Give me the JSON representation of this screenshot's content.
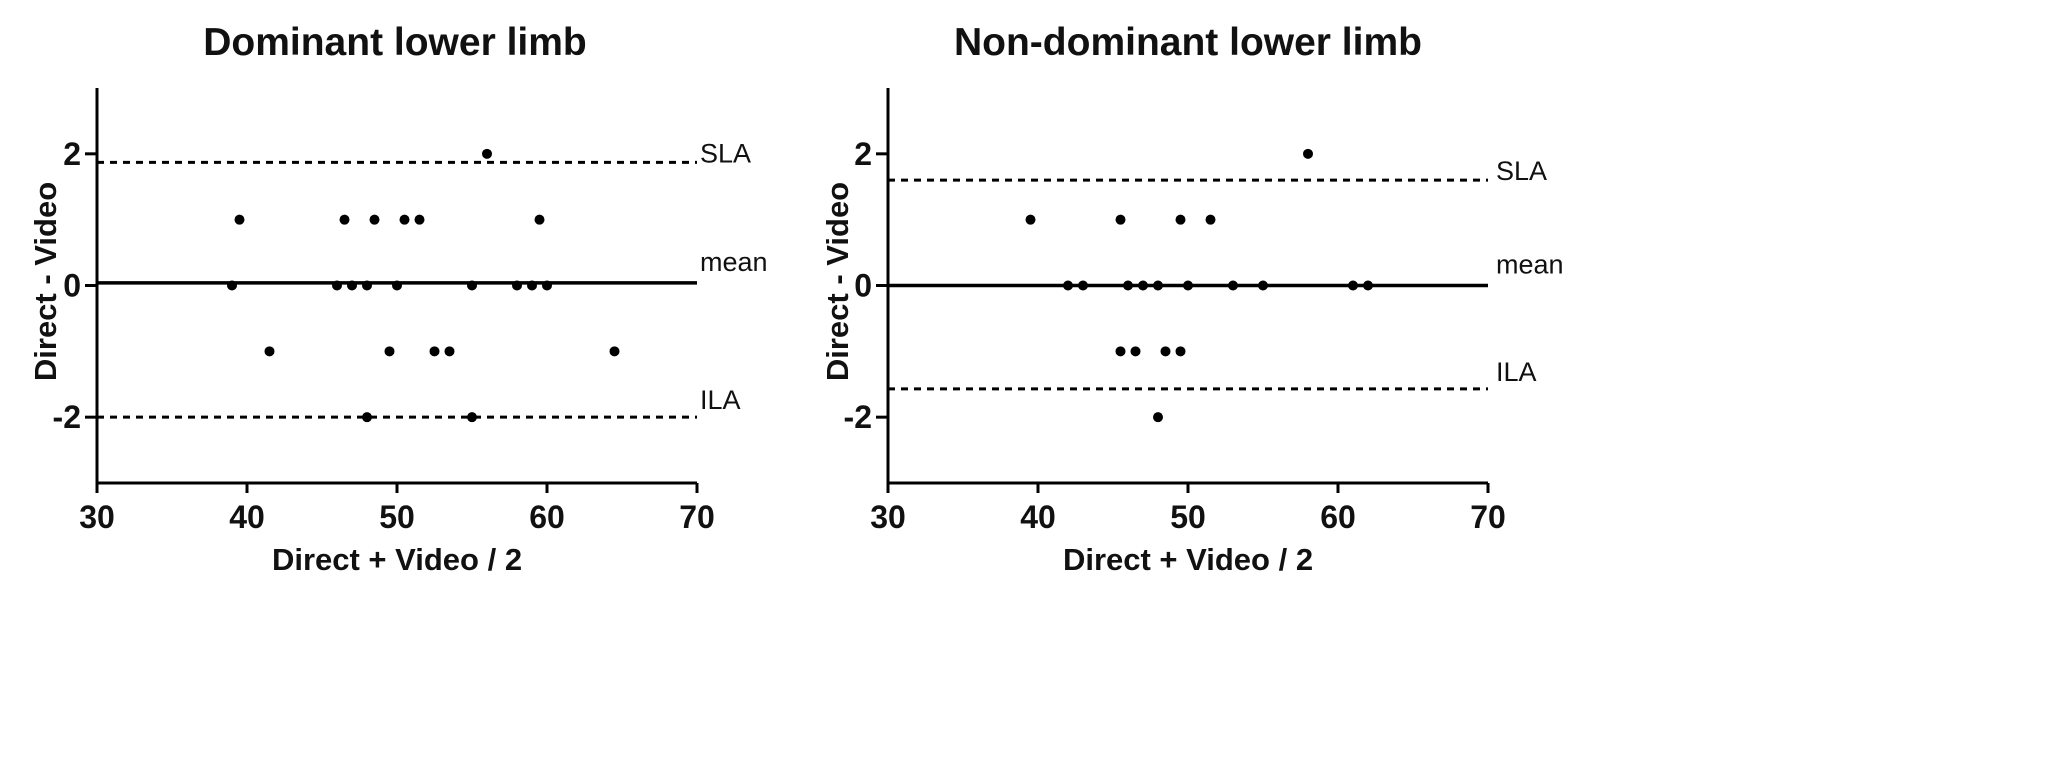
{
  "chart_data": [
    {
      "type": "scatter",
      "title": "Dominant lower limb",
      "xlabel": "Direct + Video / 2",
      "ylabel": "Direct - Video",
      "xlim": [
        30,
        70
      ],
      "ylim": [
        -3,
        3
      ],
      "x_ticks": [
        "30",
        "40",
        "50",
        "60",
        "70"
      ],
      "y_ticks": [
        "2",
        "0",
        "-2"
      ],
      "grid": false,
      "reference_lines": [
        {
          "label": "SLA",
          "y": 1.87,
          "style": "dashed"
        },
        {
          "label": "mean",
          "y": 0.04,
          "style": "solid"
        },
        {
          "label": "ILA",
          "y": -2.0,
          "style": "dashed"
        }
      ],
      "points": [
        {
          "x": 39.5,
          "y": 1
        },
        {
          "x": 46.5,
          "y": 1
        },
        {
          "x": 48.5,
          "y": 1
        },
        {
          "x": 50.5,
          "y": 1
        },
        {
          "x": 51.5,
          "y": 1
        },
        {
          "x": 59.5,
          "y": 1
        },
        {
          "x": 56,
          "y": 2
        },
        {
          "x": 39,
          "y": 0
        },
        {
          "x": 46,
          "y": 0
        },
        {
          "x": 47,
          "y": 0
        },
        {
          "x": 48,
          "y": 0
        },
        {
          "x": 50,
          "y": 0
        },
        {
          "x": 55,
          "y": 0
        },
        {
          "x": 58,
          "y": 0
        },
        {
          "x": 59,
          "y": 0
        },
        {
          "x": 60,
          "y": 0
        },
        {
          "x": 41.5,
          "y": -1
        },
        {
          "x": 49.5,
          "y": -1
        },
        {
          "x": 52.5,
          "y": -1
        },
        {
          "x": 53.5,
          "y": -1
        },
        {
          "x": 64.5,
          "y": -1
        },
        {
          "x": 48,
          "y": -2
        },
        {
          "x": 55,
          "y": -2
        }
      ]
    },
    {
      "type": "scatter",
      "title": "Non-dominant lower limb",
      "xlabel": "Direct + Video / 2",
      "ylabel": "Direct - Video",
      "xlim": [
        30,
        70
      ],
      "ylim": [
        -3,
        3
      ],
      "x_ticks": [
        "30",
        "40",
        "50",
        "60",
        "70"
      ],
      "y_ticks": [
        "2",
        "0",
        "-2"
      ],
      "grid": false,
      "reference_lines": [
        {
          "label": "SLA",
          "y": 1.6,
          "style": "dashed"
        },
        {
          "label": "mean",
          "y": 0.0,
          "style": "solid"
        },
        {
          "label": "ILA",
          "y": -1.57,
          "style": "dashed"
        }
      ],
      "points": [
        {
          "x": 58,
          "y": 2
        },
        {
          "x": 39.5,
          "y": 1
        },
        {
          "x": 45.5,
          "y": 1
        },
        {
          "x": 49.5,
          "y": 1
        },
        {
          "x": 51.5,
          "y": 1
        },
        {
          "x": 42,
          "y": 0
        },
        {
          "x": 43,
          "y": 0
        },
        {
          "x": 46,
          "y": 0
        },
        {
          "x": 47,
          "y": 0
        },
        {
          "x": 48,
          "y": 0
        },
        {
          "x": 50,
          "y": 0
        },
        {
          "x": 53,
          "y": 0
        },
        {
          "x": 55,
          "y": 0
        },
        {
          "x": 61,
          "y": 0
        },
        {
          "x": 62,
          "y": 0
        },
        {
          "x": 45.5,
          "y": -1
        },
        {
          "x": 46.5,
          "y": -1
        },
        {
          "x": 48.5,
          "y": -1
        },
        {
          "x": 49.5,
          "y": -1
        },
        {
          "x": 48,
          "y": -2
        }
      ]
    }
  ]
}
